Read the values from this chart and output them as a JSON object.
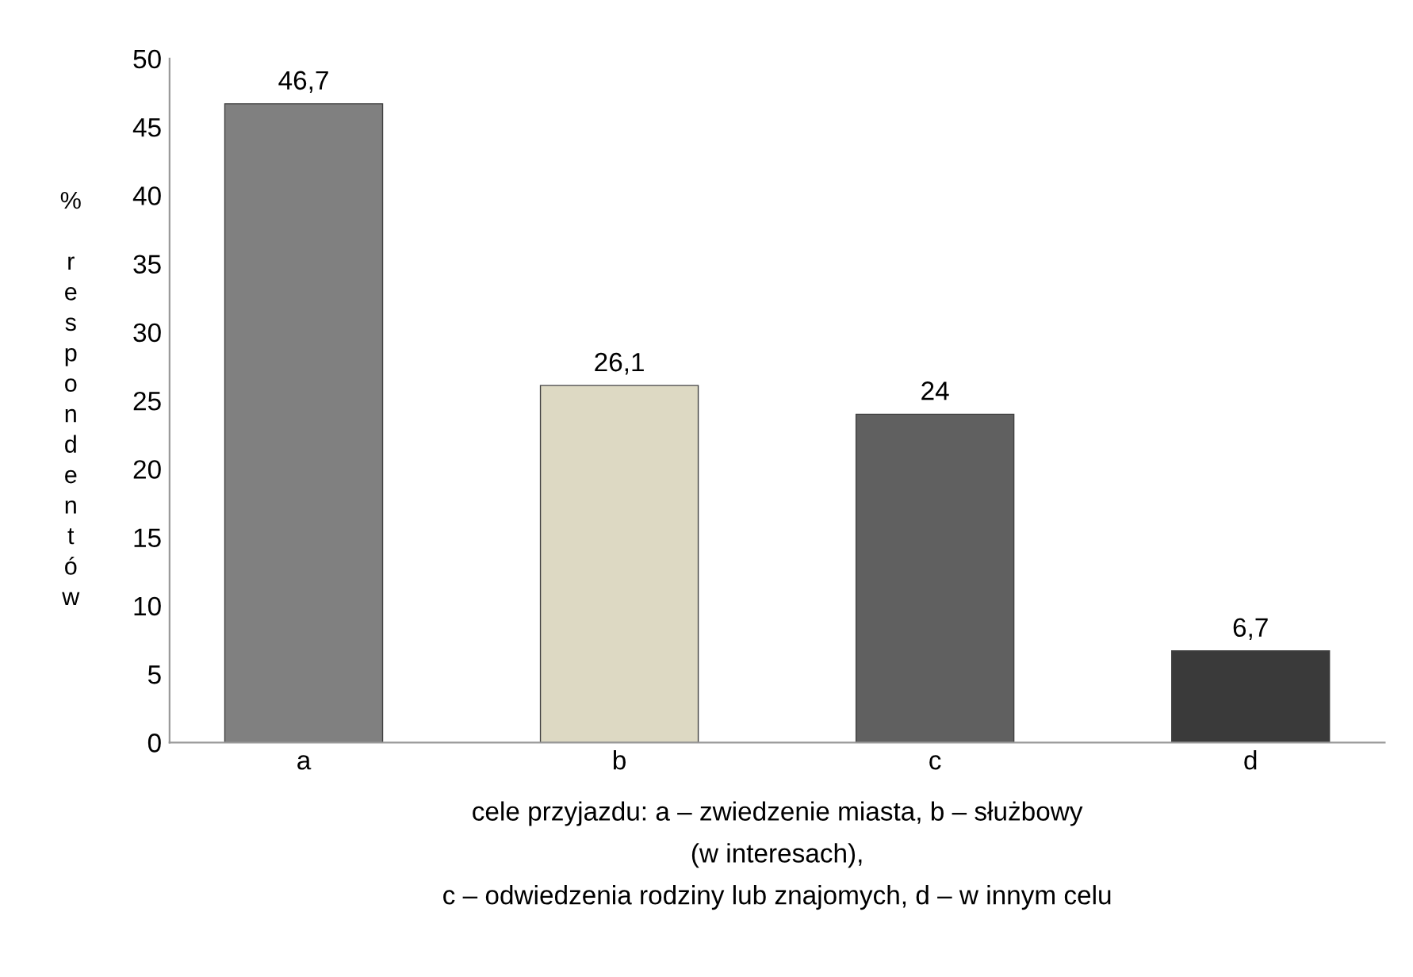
{
  "chart_data": {
    "type": "bar",
    "categories": [
      "a",
      "b",
      "c",
      "d"
    ],
    "values": [
      46.7,
      26.1,
      24,
      6.7
    ],
    "colors": [
      "#808080",
      "#ddd9c3",
      "#606060",
      "#3a3a3a"
    ],
    "value_labels": [
      "46,7",
      "26,1",
      "24",
      "6,7"
    ],
    "ylabel": "% respondentów",
    "xlabel": "cele przyjazdu: a – zwiedzenie miasta, b – służbowy\n(w interesach),\nc – odwiedzenia rodziny lub znajomych, d – w innym celu",
    "ylim": [
      0,
      50
    ],
    "yticks": [
      0,
      5,
      10,
      15,
      20,
      25,
      30,
      35,
      40,
      45,
      50
    ],
    "grid": false,
    "legend": false
  }
}
